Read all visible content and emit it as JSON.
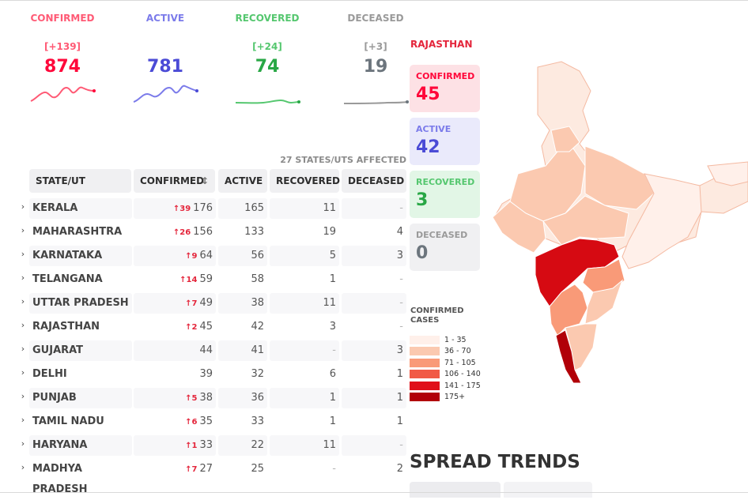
{
  "stats": {
    "confirmed": {
      "label": "CONFIRMED",
      "delta": "[+139]",
      "value": "874",
      "color": "#ff073a"
    },
    "active": {
      "label": "ACTIVE",
      "delta": "",
      "value": "781",
      "color": "#4b4bd6"
    },
    "recovered": {
      "label": "RECOVERED",
      "delta": "[+24]",
      "value": "74",
      "color": "#28a745"
    },
    "deceased": {
      "label": "DECEASED",
      "delta": "[+3]",
      "value": "19",
      "color": "#6c757d"
    }
  },
  "table": {
    "affected": "27 STATES/UTS AFFECTED",
    "headers": {
      "state": "STATE/UT",
      "confirmed": "CONFIRMED",
      "active": "ACTIVE",
      "recovered": "RECOVERED",
      "deceased": "DECEASED"
    },
    "sort_icon": "sort-icon",
    "rows": [
      {
        "state": "KERALA",
        "delta": "39",
        "confirmed": "176",
        "active": "165",
        "recovered": "11",
        "deceased": "-"
      },
      {
        "state": "MAHARASHTRA",
        "delta": "26",
        "confirmed": "156",
        "active": "133",
        "recovered": "19",
        "deceased": "4"
      },
      {
        "state": "KARNATAKA",
        "delta": "9",
        "confirmed": "64",
        "active": "56",
        "recovered": "5",
        "deceased": "3"
      },
      {
        "state": "TELANGANA",
        "delta": "14",
        "confirmed": "59",
        "active": "58",
        "recovered": "1",
        "deceased": "-"
      },
      {
        "state": "UTTAR PRADESH",
        "delta": "7",
        "confirmed": "49",
        "active": "38",
        "recovered": "11",
        "deceased": "-"
      },
      {
        "state": "RAJASTHAN",
        "delta": "2",
        "confirmed": "45",
        "active": "42",
        "recovered": "3",
        "deceased": "-"
      },
      {
        "state": "GUJARAT",
        "delta": "",
        "confirmed": "44",
        "active": "41",
        "recovered": "-",
        "deceased": "3"
      },
      {
        "state": "DELHI",
        "delta": "",
        "confirmed": "39",
        "active": "32",
        "recovered": "6",
        "deceased": "1"
      },
      {
        "state": "PUNJAB",
        "delta": "5",
        "confirmed": "38",
        "active": "36",
        "recovered": "1",
        "deceased": "1"
      },
      {
        "state": "TAMIL NADU",
        "delta": "6",
        "confirmed": "35",
        "active": "33",
        "recovered": "1",
        "deceased": "1"
      },
      {
        "state": "HARYANA",
        "delta": "1",
        "confirmed": "33",
        "active": "22",
        "recovered": "11",
        "deceased": "-"
      },
      {
        "state": "MADHYA PRADESH",
        "delta": "7",
        "confirmed": "27",
        "active": "25",
        "recovered": "-",
        "deceased": "2"
      }
    ]
  },
  "state_panel": {
    "title": "RAJASTHAN",
    "confirmed": {
      "label": "CONFIRMED",
      "value": "45"
    },
    "active": {
      "label": "ACTIVE",
      "value": "42"
    },
    "recovered": {
      "label": "RECOVERED",
      "value": "3"
    },
    "deceased": {
      "label": "DECEASED",
      "value": "0"
    }
  },
  "legend": {
    "title_line1": "CONFIRMED",
    "title_line2": "CASES",
    "items": [
      {
        "label": "1 - 35",
        "color": "#fff0ea"
      },
      {
        "label": "36 - 70",
        "color": "#fbc9b0"
      },
      {
        "label": "71 - 105",
        "color": "#f99a78"
      },
      {
        "label": "106 - 140",
        "color": "#f15a45"
      },
      {
        "label": "141 - 175",
        "color": "#e0101a"
      },
      {
        "label": "175+",
        "color": "#b10008"
      }
    ]
  },
  "spread_trends": "SPREAD TRENDS"
}
